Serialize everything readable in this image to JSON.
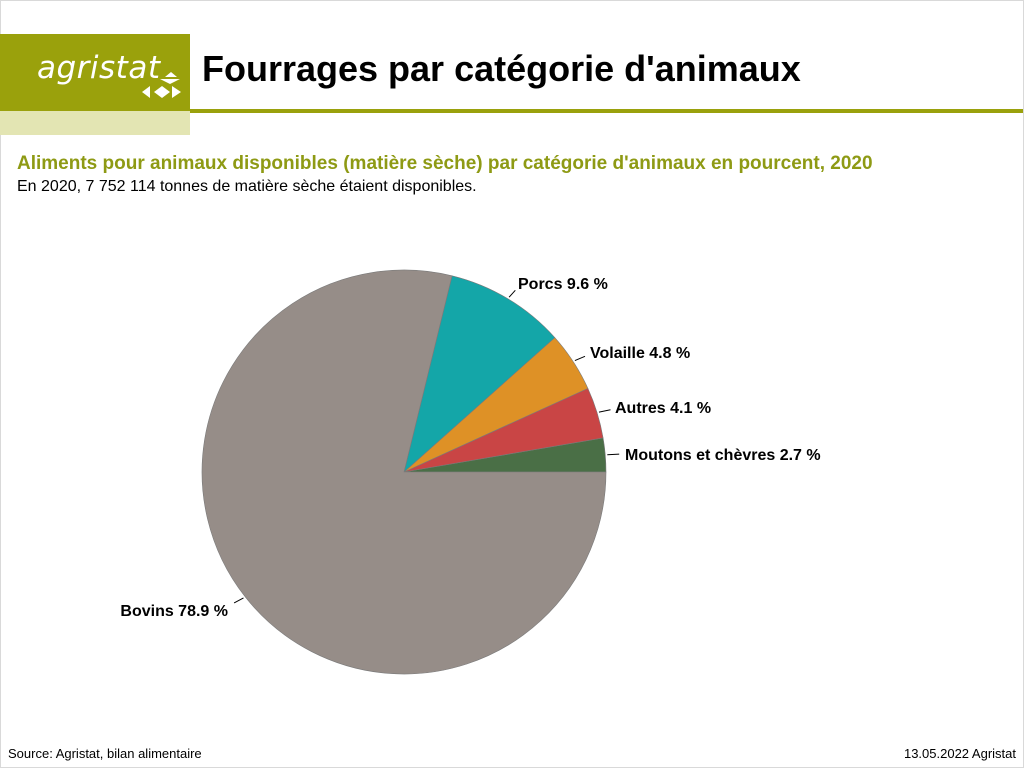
{
  "header": {
    "logo_text": "agristat",
    "page_title": "Fourrages par catégorie d'animaux"
  },
  "chart_data": {
    "type": "pie",
    "title": "Aliments pour animaux disponibles (matière sèche) par catégorie d'animaux en pourcent, 2020",
    "subtitle": "En 2020, 7 752 114 tonnes de matière sèche étaient disponibles.",
    "slices": [
      {
        "label": "Moutons et chèvres",
        "value": 2.7,
        "display": "Moutons et chèvres 2.7 %",
        "color": "#4a6f46"
      },
      {
        "label": "Autres",
        "value": 4.1,
        "display": "Autres 4.1 %",
        "color": "#c94545"
      },
      {
        "label": "Volaille",
        "value": 4.8,
        "display": "Volaille 4.8 %",
        "color": "#de9126"
      },
      {
        "label": "Porcs",
        "value": 9.6,
        "display": "Porcs 9.6 %",
        "color": "#14a6a8"
      },
      {
        "label": "Bovins",
        "value": 78.9,
        "display": "Bovins 78.9 %",
        "color": "#968d88"
      }
    ]
  },
  "footer": {
    "source": "Source: Agristat, bilan alimentaire",
    "date": "13.05.2022 Agristat"
  },
  "colors": {
    "brand": "#9aa10c",
    "brand_light": "#e3e5b3",
    "title_green": "#8e9a14"
  }
}
